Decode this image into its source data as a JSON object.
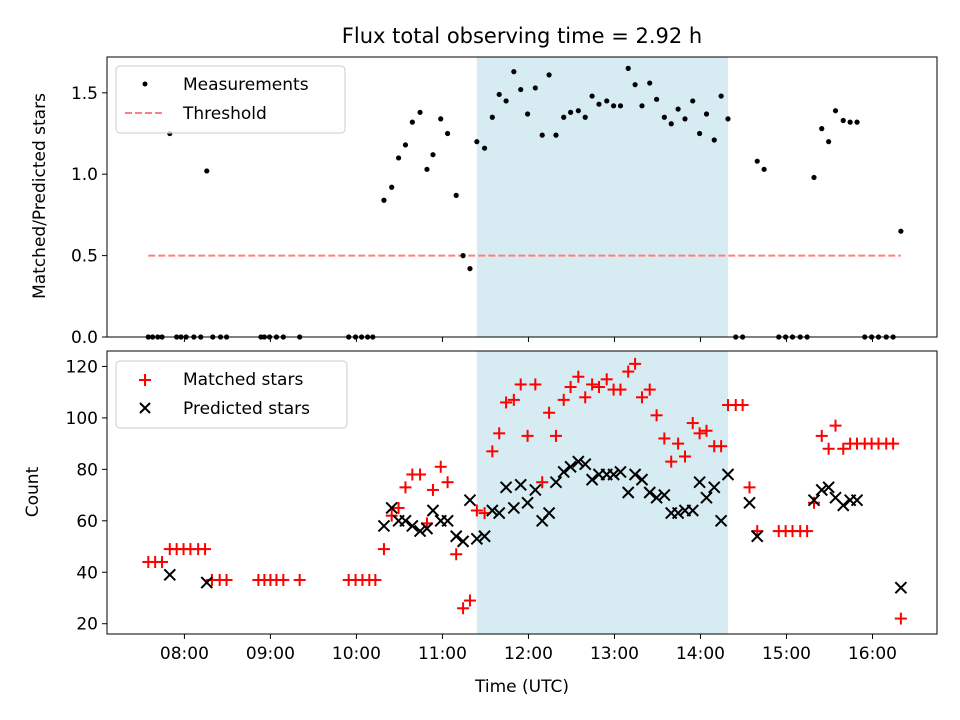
{
  "chart_data": [
    {
      "type": "scatter",
      "title": "Flux total observing time = 2.92 h",
      "xlabel": "",
      "ylabel": "Matched/Predicted stars",
      "xlim": [
        7.1,
        16.75
      ],
      "ylim": [
        0,
        1.72
      ],
      "yticks": [
        0.0,
        0.5,
        1.0,
        1.5
      ],
      "ytick_labels": [
        "0.0",
        "0.5",
        "1.0",
        "1.5"
      ],
      "xticks": [
        8,
        9,
        10,
        11,
        12,
        13,
        14,
        15,
        16
      ],
      "shaded_span": [
        11.4,
        14.32
      ],
      "shade_color": "#add8e6",
      "legend": [
        "Measurements",
        "Threshold"
      ],
      "legend_position": "upper left",
      "threshold": {
        "y": 0.5,
        "x_range": [
          7.58,
          16.33
        ],
        "color": "#ff7f7f"
      },
      "series": [
        {
          "name": "Measurements",
          "color": "#000000",
          "points": [
            [
              7.58,
              0
            ],
            [
              7.63,
              0
            ],
            [
              7.69,
              0
            ],
            [
              7.74,
              0
            ],
            [
              7.83,
              1.25
            ],
            [
              7.91,
              0
            ],
            [
              7.96,
              0
            ],
            [
              8.02,
              0
            ],
            [
              8.11,
              0
            ],
            [
              8.19,
              0
            ],
            [
              8.26,
              1.02
            ],
            [
              8.33,
              0
            ],
            [
              8.42,
              0
            ],
            [
              8.49,
              0
            ],
            [
              8.89,
              0
            ],
            [
              8.93,
              0
            ],
            [
              8.99,
              0
            ],
            [
              9.07,
              0
            ],
            [
              9.15,
              0
            ],
            [
              9.34,
              0
            ],
            [
              9.91,
              0
            ],
            [
              9.99,
              0
            ],
            [
              10.06,
              0
            ],
            [
              10.13,
              0
            ],
            [
              10.19,
              0
            ],
            [
              10.32,
              0.84
            ],
            [
              10.41,
              0.92
            ],
            [
              10.49,
              1.1
            ],
            [
              10.57,
              1.18
            ],
            [
              10.65,
              1.32
            ],
            [
              10.74,
              1.38
            ],
            [
              10.82,
              1.03
            ],
            [
              10.89,
              1.12
            ],
            [
              10.98,
              1.34
            ],
            [
              11.06,
              1.25
            ],
            [
              11.16,
              0.87
            ],
            [
              11.24,
              0.5
            ],
            [
              11.32,
              0.42
            ],
            [
              11.4,
              1.2
            ],
            [
              11.49,
              1.16
            ],
            [
              11.58,
              1.35
            ],
            [
              11.66,
              1.49
            ],
            [
              11.74,
              1.45
            ],
            [
              11.83,
              1.63
            ],
            [
              11.91,
              1.52
            ],
            [
              11.99,
              1.37
            ],
            [
              12.08,
              1.53
            ],
            [
              12.16,
              1.24
            ],
            [
              12.24,
              1.61
            ],
            [
              12.32,
              1.24
            ],
            [
              12.41,
              1.35
            ],
            [
              12.49,
              1.38
            ],
            [
              12.58,
              1.39
            ],
            [
              12.66,
              1.35
            ],
            [
              12.74,
              1.48
            ],
            [
              12.82,
              1.43
            ],
            [
              12.91,
              1.45
            ],
            [
              12.99,
              1.42
            ],
            [
              13.07,
              1.42
            ],
            [
              13.16,
              1.65
            ],
            [
              13.24,
              1.55
            ],
            [
              13.32,
              1.42
            ],
            [
              13.41,
              1.56
            ],
            [
              13.49,
              1.46
            ],
            [
              13.58,
              1.35
            ],
            [
              13.66,
              1.31
            ],
            [
              13.74,
              1.4
            ],
            [
              13.82,
              1.34
            ],
            [
              13.91,
              1.45
            ],
            [
              13.99,
              1.25
            ],
            [
              14.07,
              1.37
            ],
            [
              14.16,
              1.21
            ],
            [
              14.24,
              1.48
            ],
            [
              14.32,
              1.34
            ],
            [
              14.41,
              0
            ],
            [
              14.49,
              0
            ],
            [
              14.66,
              1.08
            ],
            [
              14.74,
              1.03
            ],
            [
              14.91,
              0
            ],
            [
              14.99,
              0
            ],
            [
              15.07,
              0
            ],
            [
              15.16,
              0
            ],
            [
              15.24,
              0
            ],
            [
              15.32,
              0.98
            ],
            [
              15.41,
              1.28
            ],
            [
              15.49,
              1.2
            ],
            [
              15.57,
              1.39
            ],
            [
              15.66,
              1.33
            ],
            [
              15.74,
              1.32
            ],
            [
              15.82,
              1.32
            ],
            [
              15.91,
              0
            ],
            [
              15.99,
              0
            ],
            [
              16.07,
              0
            ],
            [
              16.16,
              0
            ],
            [
              16.24,
              0
            ],
            [
              16.33,
              0.65
            ]
          ]
        }
      ]
    },
    {
      "type": "scatter",
      "title": "",
      "xlabel": "Time (UTC)",
      "ylabel": "Count",
      "xlim": [
        7.1,
        16.75
      ],
      "ylim": [
        16,
        126
      ],
      "yticks": [
        20,
        40,
        60,
        80,
        100,
        120
      ],
      "ytick_labels": [
        "20",
        "40",
        "60",
        "80",
        "100",
        "120"
      ],
      "xticks": [
        8,
        9,
        10,
        11,
        12,
        13,
        14,
        15,
        16
      ],
      "xtick_labels": [
        "08:00",
        "09:00",
        "10:00",
        "11:00",
        "12:00",
        "13:00",
        "14:00",
        "15:00",
        "16:00"
      ],
      "shaded_span": [
        11.4,
        14.32
      ],
      "shade_color": "#add8e6",
      "legend": [
        "Matched stars",
        "Predicted stars"
      ],
      "legend_position": "upper left",
      "series": [
        {
          "name": "Matched stars",
          "marker": "plus",
          "color": "#ff0000",
          "points": [
            [
              7.58,
              44
            ],
            [
              7.66,
              44
            ],
            [
              7.74,
              44
            ],
            [
              7.83,
              49
            ],
            [
              7.91,
              49
            ],
            [
              7.99,
              49
            ],
            [
              8.07,
              49
            ],
            [
              8.16,
              49
            ],
            [
              8.24,
              49
            ],
            [
              8.32,
              37
            ],
            [
              8.41,
              37
            ],
            [
              8.49,
              37
            ],
            [
              8.86,
              37
            ],
            [
              8.93,
              37
            ],
            [
              9.0,
              37
            ],
            [
              9.07,
              37
            ],
            [
              9.15,
              37
            ],
            [
              9.34,
              37
            ],
            [
              9.91,
              37
            ],
            [
              9.99,
              37
            ],
            [
              10.07,
              37
            ],
            [
              10.15,
              37
            ],
            [
              10.22,
              37
            ],
            [
              10.32,
              49
            ],
            [
              10.41,
              62
            ],
            [
              10.49,
              65
            ],
            [
              10.57,
              73
            ],
            [
              10.65,
              78
            ],
            [
              10.74,
              78
            ],
            [
              10.82,
              59
            ],
            [
              10.89,
              72
            ],
            [
              10.98,
              81
            ],
            [
              11.06,
              75
            ],
            [
              11.16,
              47
            ],
            [
              11.24,
              26
            ],
            [
              11.32,
              29
            ],
            [
              11.4,
              64
            ],
            [
              11.49,
              63
            ],
            [
              11.58,
              87
            ],
            [
              11.66,
              94
            ],
            [
              11.74,
              106
            ],
            [
              11.83,
              107
            ],
            [
              11.91,
              113
            ],
            [
              11.99,
              93
            ],
            [
              12.08,
              113
            ],
            [
              12.16,
              75
            ],
            [
              12.24,
              102
            ],
            [
              12.32,
              93
            ],
            [
              12.41,
              107
            ],
            [
              12.49,
              112
            ],
            [
              12.58,
              116
            ],
            [
              12.66,
              108
            ],
            [
              12.74,
              113
            ],
            [
              12.82,
              112
            ],
            [
              12.91,
              115
            ],
            [
              12.99,
              111
            ],
            [
              13.07,
              111
            ],
            [
              13.16,
              118
            ],
            [
              13.24,
              121
            ],
            [
              13.32,
              108
            ],
            [
              13.41,
              111
            ],
            [
              13.49,
              101
            ],
            [
              13.58,
              92
            ],
            [
              13.66,
              83
            ],
            [
              13.74,
              90
            ],
            [
              13.82,
              85
            ],
            [
              13.91,
              98
            ],
            [
              13.99,
              94
            ],
            [
              14.07,
              95
            ],
            [
              14.16,
              89
            ],
            [
              14.24,
              89
            ],
            [
              14.32,
              105
            ],
            [
              14.41,
              105
            ],
            [
              14.49,
              105
            ],
            [
              14.57,
              73
            ],
            [
              14.66,
              56
            ],
            [
              14.91,
              56
            ],
            [
              14.99,
              56
            ],
            [
              15.07,
              56
            ],
            [
              15.16,
              56
            ],
            [
              15.24,
              56
            ],
            [
              15.32,
              67
            ],
            [
              15.41,
              93
            ],
            [
              15.49,
              88
            ],
            [
              15.57,
              97
            ],
            [
              15.66,
              88
            ],
            [
              15.74,
              90
            ],
            [
              15.82,
              90
            ],
            [
              15.91,
              90
            ],
            [
              15.99,
              90
            ],
            [
              16.07,
              90
            ],
            [
              16.16,
              90
            ],
            [
              16.24,
              90
            ],
            [
              16.33,
              22
            ]
          ]
        },
        {
          "name": "Predicted stars",
          "marker": "x",
          "color": "#000000",
          "points": [
            [
              7.83,
              39
            ],
            [
              8.26,
              36
            ],
            [
              10.32,
              58
            ],
            [
              10.41,
              65
            ],
            [
              10.49,
              60
            ],
            [
              10.57,
              60
            ],
            [
              10.65,
              58
            ],
            [
              10.74,
              56
            ],
            [
              10.82,
              57
            ],
            [
              10.89,
              64
            ],
            [
              10.98,
              60
            ],
            [
              11.06,
              60
            ],
            [
              11.16,
              54
            ],
            [
              11.24,
              52
            ],
            [
              11.32,
              68
            ],
            [
              11.4,
              53
            ],
            [
              11.49,
              54
            ],
            [
              11.58,
              64
            ],
            [
              11.66,
              63
            ],
            [
              11.74,
              73
            ],
            [
              11.83,
              65
            ],
            [
              11.91,
              74
            ],
            [
              11.99,
              67
            ],
            [
              12.08,
              72
            ],
            [
              12.16,
              60
            ],
            [
              12.24,
              63
            ],
            [
              12.32,
              75
            ],
            [
              12.41,
              79
            ],
            [
              12.49,
              81
            ],
            [
              12.58,
              83
            ],
            [
              12.66,
              82
            ],
            [
              12.74,
              76
            ],
            [
              12.82,
              78
            ],
            [
              12.91,
              78
            ],
            [
              12.99,
              78
            ],
            [
              13.07,
              79
            ],
            [
              13.16,
              71
            ],
            [
              13.24,
              78
            ],
            [
              13.32,
              76
            ],
            [
              13.41,
              71
            ],
            [
              13.49,
              69
            ],
            [
              13.58,
              70
            ],
            [
              13.66,
              63
            ],
            [
              13.74,
              63
            ],
            [
              13.82,
              64
            ],
            [
              13.91,
              64
            ],
            [
              13.99,
              75
            ],
            [
              14.07,
              69
            ],
            [
              14.16,
              73
            ],
            [
              14.24,
              60
            ],
            [
              14.32,
              78
            ],
            [
              14.57,
              67
            ],
            [
              14.66,
              54
            ],
            [
              15.32,
              68
            ],
            [
              15.41,
              72
            ],
            [
              15.49,
              73
            ],
            [
              15.57,
              69
            ],
            [
              15.66,
              66
            ],
            [
              15.74,
              68
            ],
            [
              15.82,
              68
            ],
            [
              16.33,
              34
            ]
          ]
        }
      ]
    }
  ]
}
